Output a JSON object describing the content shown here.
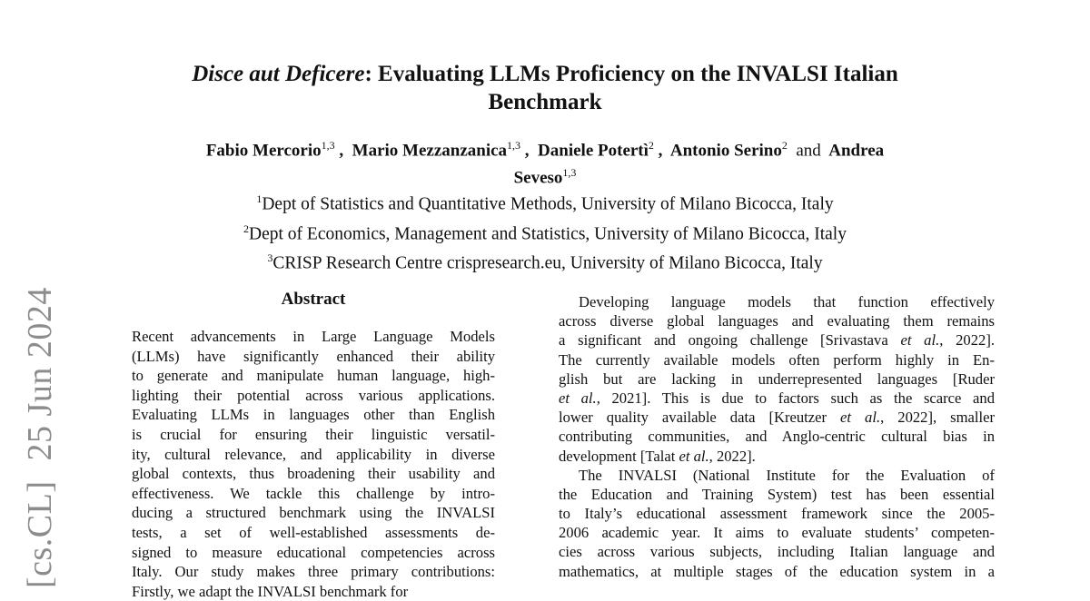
{
  "arxiv_stamp": {
    "category": "[cs.CL]",
    "date": "25 Jun 2024"
  },
  "title": {
    "italic_part": "Disce aut Deficere",
    "line1_rest": ": Evaluating LLMs Proficiency on the INVALSI Italian",
    "line2": "Benchmark"
  },
  "authors": [
    {
      "name": "Fabio Mercorio",
      "aff": "1,3"
    },
    {
      "name": "Mario Mezzanzanica",
      "aff": "1,3"
    },
    {
      "name": "Daniele Potertì",
      "aff": "2"
    },
    {
      "name": "Antonio Serino",
      "aff": "2"
    },
    {
      "name": "Andrea Seveso",
      "aff": "1,3"
    }
  ],
  "authors_and": "and",
  "affiliations": [
    {
      "num": "1",
      "text": "Dept of Statistics and Quantitative Methods, University of Milano Bicocca, Italy"
    },
    {
      "num": "2",
      "text": "Dept of Economics, Management and Statistics, University of Milano Bicocca, Italy"
    },
    {
      "num": "3",
      "text": "CRISP Research Centre crispresearch.eu, University of Milano Bicocca, Italy"
    }
  ],
  "abstract_heading": "Abstract",
  "left_column": [
    "Recent advancements in Large Language Models",
    "(LLMs) have significantly enhanced their ability",
    "to generate and manipulate human language, high-",
    "lighting their potential across various applications.",
    "Evaluating LLMs in languages other than English",
    "is crucial for ensuring their linguistic versatil-",
    "ity, cultural relevance, and applicability in diverse",
    "global contexts, thus broadening their usability and",
    "effectiveness.  We tackle this challenge by intro-",
    "ducing a structured benchmark using the INVALSI",
    "tests, a set of well-established assessments de-",
    "signed to measure educational competencies across",
    "Italy. Our study makes three primary contributions:",
    "Firstly, we adapt the INVALSI benchmark for"
  ],
  "right_column": [
    "Developing language models that function effectively",
    "across diverse global languages and evaluating them remains",
    "a significant and ongoing challenge [Srivastava et al., 2022].",
    "The currently available models often perform highly in En-",
    "glish but are lacking in underrepresented languages [Ruder",
    "et al., 2021].  This is due to factors such as the scarce and",
    "lower quality available data [Kreutzer et al., 2022], smaller",
    "contributing communities, and Anglo-centric cultural bias in",
    "development [Talat et al., 2022].",
    "The INVALSI (National Institute for the Evaluation of",
    "the Education and Training System) test has been essential",
    "to Italy’s educational assessment framework since the 2005-",
    "2006 academic year. It aims to evaluate students’ competen-",
    "cies across various subjects, including Italian language and",
    "mathematics, at multiple stages of the education system in a"
  ]
}
